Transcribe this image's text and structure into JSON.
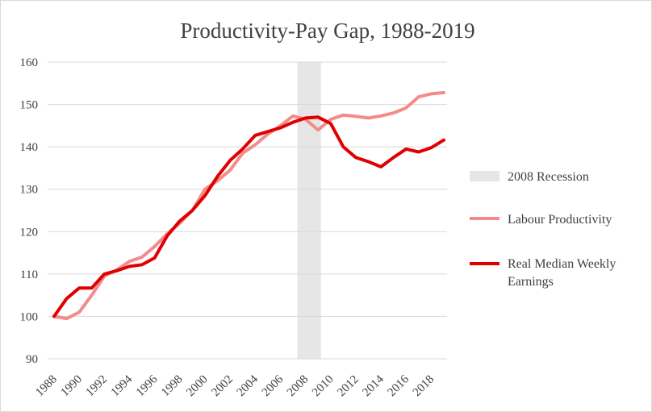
{
  "chart_data": {
    "type": "line",
    "title": "Productivity-Pay  Gap, 1988-2019",
    "xlabel": "",
    "ylabel": "",
    "ylim": [
      90,
      160
    ],
    "yticks": [
      90,
      100,
      110,
      120,
      130,
      140,
      150,
      160
    ],
    "xlim": [
      1988,
      2019
    ],
    "xticks": [
      1988,
      1990,
      1992,
      1994,
      1996,
      1998,
      2000,
      2002,
      2004,
      2006,
      2008,
      2010,
      2012,
      2014,
      2016,
      2018
    ],
    "grid": "horizontal",
    "legend_position": "right",
    "recession": {
      "label": "2008 Recession",
      "x_start": 2008,
      "x_end": 2010,
      "color": "#e6e6e6"
    },
    "x": [
      1988,
      1989,
      1990,
      1991,
      1992,
      1993,
      1994,
      1995,
      1996,
      1997,
      1998,
      1999,
      2000,
      2001,
      2002,
      2003,
      2004,
      2005,
      2006,
      2007,
      2008,
      2009,
      2010,
      2011,
      2012,
      2013,
      2014,
      2015,
      2016,
      2017,
      2018,
      2019
    ],
    "series": [
      {
        "name": "Labour Productivity",
        "color": "#f38b8b",
        "width": 4,
        "values": [
          100,
          99.5,
          101,
          105,
          109.5,
          111,
          113,
          114,
          116.5,
          119.5,
          122,
          125,
          130,
          132,
          134.5,
          138.5,
          140.5,
          143,
          145,
          147.3,
          146.5,
          144,
          146.5,
          147.5,
          147.2,
          146.8,
          147.3,
          148,
          149.2,
          151.8,
          152.5,
          152.8
        ]
      },
      {
        "name": "Real Median Weekly Earnings",
        "color": "#e00000",
        "width": 4,
        "values": [
          100,
          104.2,
          106.7,
          106.7,
          110,
          110.8,
          111.8,
          112.2,
          113.8,
          119,
          122.5,
          125,
          128.5,
          133,
          136.8,
          139.5,
          142.7,
          143.6,
          144.5,
          145.8,
          146.8,
          147,
          145.5,
          140,
          137.5,
          136.5,
          135.3,
          137.5,
          139.5,
          138.8,
          139.8,
          141.6
        ]
      }
    ]
  }
}
